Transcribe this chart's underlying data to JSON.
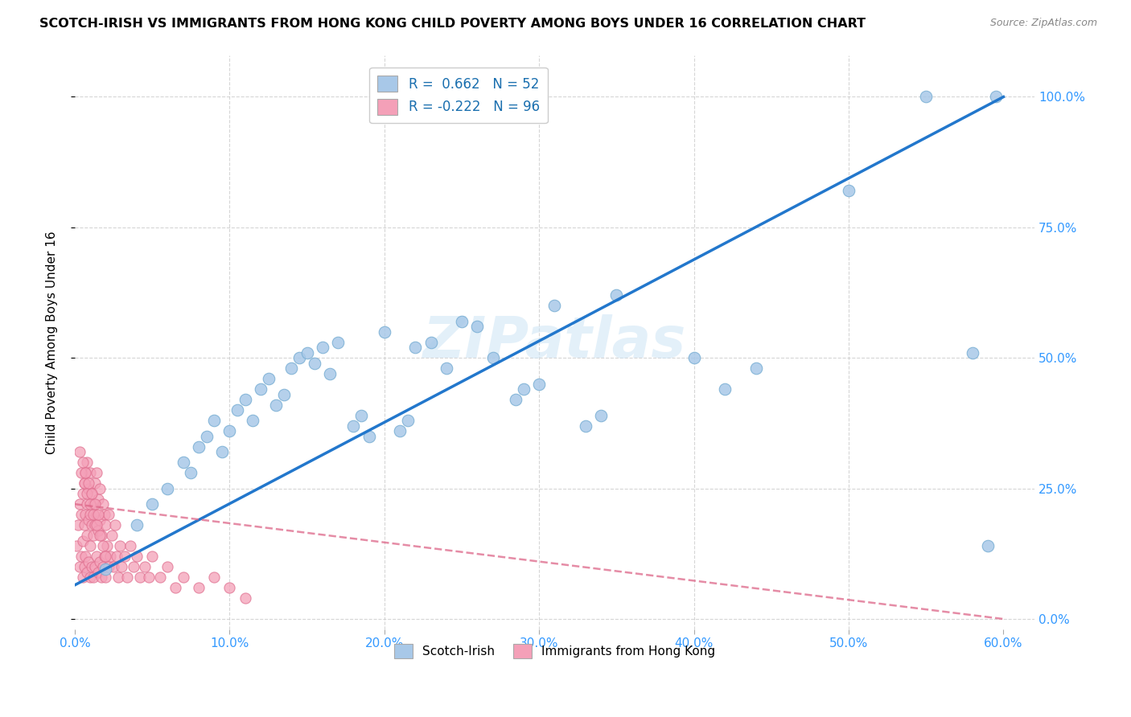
{
  "title": "SCOTCH-IRISH VS IMMIGRANTS FROM HONG KONG CHILD POVERTY AMONG BOYS UNDER 16 CORRELATION CHART",
  "source": "Source: ZipAtlas.com",
  "xlabel_ticks": [
    "0.0%",
    "10.0%",
    "20.0%",
    "30.0%",
    "40.0%",
    "50.0%",
    "60.0%"
  ],
  "ylabel_ticks": [
    "0.0%",
    "25.0%",
    "50.0%",
    "75.0%",
    "100.0%"
  ],
  "xlim": [
    0.0,
    0.62
  ],
  "ylim": [
    -0.02,
    1.08
  ],
  "ylabel": "Child Poverty Among Boys Under 16",
  "legend_labels": [
    "Scotch-Irish",
    "Immigrants from Hong Kong"
  ],
  "scotch_irish_R": 0.662,
  "scotch_irish_N": 52,
  "hk_R": -0.222,
  "hk_N": 96,
  "scotch_irish_color": "#a8c8e8",
  "scotch_irish_edge_color": "#7aafd4",
  "scotch_irish_line_color": "#2277cc",
  "hk_color": "#f4a0b8",
  "hk_edge_color": "#e07090",
  "hk_line_color": "#dd6688",
  "watermark": "ZIPatlas",
  "scotch_irish_x": [
    0.02,
    0.04,
    0.05,
    0.06,
    0.07,
    0.075,
    0.08,
    0.085,
    0.09,
    0.095,
    0.1,
    0.105,
    0.11,
    0.115,
    0.12,
    0.125,
    0.13,
    0.135,
    0.14,
    0.145,
    0.15,
    0.155,
    0.16,
    0.165,
    0.17,
    0.18,
    0.185,
    0.19,
    0.2,
    0.21,
    0.215,
    0.22,
    0.23,
    0.24,
    0.25,
    0.26,
    0.27,
    0.285,
    0.29,
    0.3,
    0.31,
    0.33,
    0.34,
    0.35,
    0.4,
    0.42,
    0.44,
    0.5,
    0.55,
    0.58,
    0.59,
    0.595
  ],
  "scotch_irish_y": [
    0.095,
    0.18,
    0.22,
    0.25,
    0.3,
    0.28,
    0.33,
    0.35,
    0.38,
    0.32,
    0.36,
    0.4,
    0.42,
    0.38,
    0.44,
    0.46,
    0.41,
    0.43,
    0.48,
    0.5,
    0.51,
    0.49,
    0.52,
    0.47,
    0.53,
    0.37,
    0.39,
    0.35,
    0.55,
    0.36,
    0.38,
    0.52,
    0.53,
    0.48,
    0.57,
    0.56,
    0.5,
    0.42,
    0.44,
    0.45,
    0.6,
    0.37,
    0.39,
    0.62,
    0.5,
    0.44,
    0.48,
    0.82,
    1.0,
    0.51,
    0.14,
    1.0
  ],
  "hk_x": [
    0.001,
    0.002,
    0.003,
    0.003,
    0.004,
    0.004,
    0.005,
    0.005,
    0.005,
    0.006,
    0.006,
    0.006,
    0.007,
    0.007,
    0.007,
    0.008,
    0.008,
    0.008,
    0.008,
    0.009,
    0.009,
    0.009,
    0.01,
    0.01,
    0.01,
    0.01,
    0.011,
    0.011,
    0.011,
    0.012,
    0.012,
    0.012,
    0.013,
    0.013,
    0.013,
    0.014,
    0.014,
    0.014,
    0.015,
    0.015,
    0.015,
    0.016,
    0.016,
    0.016,
    0.017,
    0.017,
    0.018,
    0.018,
    0.019,
    0.019,
    0.02,
    0.02,
    0.021,
    0.022,
    0.022,
    0.023,
    0.024,
    0.025,
    0.026,
    0.027,
    0.028,
    0.029,
    0.03,
    0.032,
    0.034,
    0.036,
    0.038,
    0.04,
    0.042,
    0.045,
    0.048,
    0.05,
    0.055,
    0.06,
    0.065,
    0.07,
    0.08,
    0.09,
    0.1,
    0.11,
    0.003,
    0.004,
    0.005,
    0.006,
    0.007,
    0.008,
    0.009,
    0.01,
    0.011,
    0.012,
    0.013,
    0.014,
    0.015,
    0.016,
    0.018,
    0.02
  ],
  "hk_y": [
    0.14,
    0.18,
    0.1,
    0.22,
    0.12,
    0.2,
    0.08,
    0.15,
    0.24,
    0.1,
    0.18,
    0.26,
    0.12,
    0.2,
    0.28,
    0.09,
    0.16,
    0.22,
    0.3,
    0.11,
    0.19,
    0.25,
    0.08,
    0.14,
    0.2,
    0.28,
    0.1,
    0.18,
    0.24,
    0.08,
    0.16,
    0.22,
    0.1,
    0.18,
    0.26,
    0.12,
    0.2,
    0.28,
    0.09,
    0.17,
    0.23,
    0.11,
    0.19,
    0.25,
    0.08,
    0.16,
    0.1,
    0.22,
    0.12,
    0.2,
    0.08,
    0.18,
    0.14,
    0.1,
    0.2,
    0.12,
    0.16,
    0.1,
    0.18,
    0.12,
    0.08,
    0.14,
    0.1,
    0.12,
    0.08,
    0.14,
    0.1,
    0.12,
    0.08,
    0.1,
    0.08,
    0.12,
    0.08,
    0.1,
    0.06,
    0.08,
    0.06,
    0.08,
    0.06,
    0.04,
    0.32,
    0.28,
    0.3,
    0.26,
    0.28,
    0.24,
    0.26,
    0.22,
    0.24,
    0.2,
    0.22,
    0.18,
    0.2,
    0.16,
    0.14,
    0.12
  ],
  "si_trend_x0": 0.0,
  "si_trend_y0": 0.065,
  "si_trend_x1": 0.6,
  "si_trend_y1": 1.0,
  "hk_trend_x0": 0.0,
  "hk_trend_y0": 0.22,
  "hk_trend_x1": 0.6,
  "hk_trend_y1": 0.0
}
